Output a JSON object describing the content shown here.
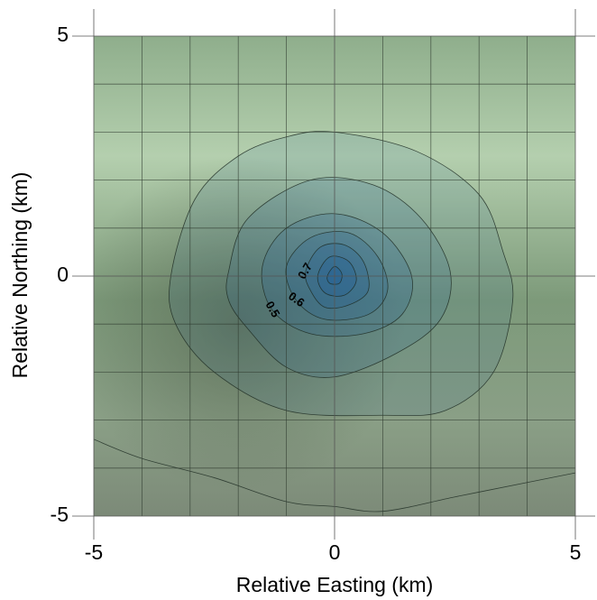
{
  "chart_data": {
    "type": "contour",
    "xlabel": "Relative Easting (km)",
    "ylabel": "Relative Northing (km)",
    "xlim": [
      -5,
      5
    ],
    "ylim": [
      -5,
      5
    ],
    "xticks": [
      -5,
      0,
      5
    ],
    "yticks": [
      -5,
      0,
      5
    ],
    "xgrid": [
      -4,
      -3,
      -2,
      -1,
      1,
      2,
      3,
      4
    ],
    "ygrid": [
      -4,
      -3,
      -2,
      -1,
      1,
      2,
      3,
      4
    ],
    "grid": true,
    "color": "#1f5f9a",
    "contours": [
      {
        "level": 0.2,
        "labeled": false,
        "closed": false,
        "x": [
          -5,
          -4,
          -2.5,
          -1,
          0,
          1,
          2.5,
          4,
          5
        ],
        "y": [
          -3.4,
          -3.8,
          -4.2,
          -4.7,
          -4.8,
          -4.9,
          -4.6,
          -4.3,
          -4.1
        ]
      },
      {
        "level": 0.3,
        "labeled": false,
        "closed": true,
        "x": [
          -3.4,
          -2.9,
          -2,
          -1,
          0,
          1.7,
          3,
          3.5,
          3.7,
          3.3,
          2.3,
          1,
          -1,
          -2.5,
          -3.3
        ],
        "y": [
          0,
          1.6,
          2.5,
          2.9,
          3,
          2.6,
          1.7,
          0.5,
          -0.5,
          -2,
          -2.8,
          -2.9,
          -2.8,
          -2,
          -1
        ]
      },
      {
        "level": 0.4,
        "labeled": false,
        "closed": true,
        "x": [
          -2.2,
          -1.8,
          -0.5,
          0.8,
          1.8,
          2.4,
          2.2,
          1.3,
          0,
          -1,
          -1.8,
          -2.2
        ],
        "y": [
          0.1,
          1.2,
          2,
          1.9,
          1.2,
          0.1,
          -0.9,
          -1.6,
          -2.1,
          -1.9,
          -1.1,
          -0.5
        ]
      },
      {
        "level": 0.5,
        "labeled": true,
        "closed": true,
        "x": [
          -1.5,
          -1,
          0,
          1,
          1.6,
          1.4,
          0.6,
          -0.5,
          -1.3
        ],
        "y": [
          0.2,
          1,
          1.3,
          0.9,
          0,
          -0.8,
          -1.2,
          -1.2,
          -0.7
        ]
      },
      {
        "level": 0.6,
        "labeled": true,
        "closed": true,
        "x": [
          -1,
          -0.5,
          0.3,
          0.9,
          1.1,
          0.7,
          -0.2,
          -0.8
        ],
        "y": [
          0.2,
          0.8,
          0.9,
          0.4,
          -0.3,
          -0.8,
          -0.9,
          -0.5
        ]
      },
      {
        "level": 0.7,
        "labeled": true,
        "closed": true,
        "x": [
          -0.6,
          -0.3,
          0.2,
          0.6,
          0.7,
          0.3,
          -0.2,
          -0.5
        ],
        "y": [
          0.1,
          0.6,
          0.65,
          0.3,
          -0.3,
          -0.6,
          -0.65,
          -0.3
        ]
      },
      {
        "level": 0.8,
        "labeled": false,
        "closed": true,
        "x": [
          -0.35,
          -0.1,
          0.3,
          0.45,
          0.2,
          -0.2
        ],
        "y": [
          0,
          0.4,
          0.3,
          -0.1,
          -0.4,
          -0.35
        ]
      },
      {
        "level": 0.9,
        "labeled": false,
        "closed": true,
        "x": [
          -0.15,
          0,
          0.15,
          0.1,
          -0.1
        ],
        "y": [
          0,
          0.2,
          0.05,
          -0.15,
          -0.15
        ]
      }
    ]
  }
}
